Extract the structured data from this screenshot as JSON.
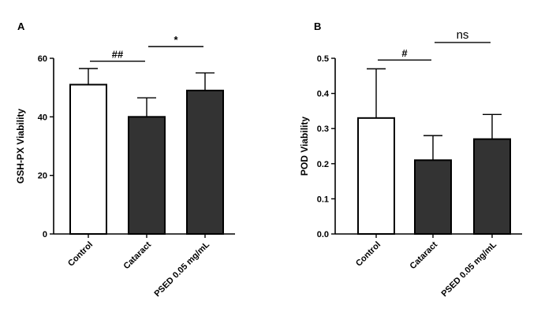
{
  "chart_data": [
    {
      "panel": "A",
      "type": "bar",
      "ylabel": "GSH-PX Viability",
      "xlabel": "",
      "categories": [
        "Control",
        "Cataract",
        "PSED 0.05 mg/mL"
      ],
      "values": [
        51,
        40,
        49
      ],
      "errors": [
        5.5,
        6.5,
        6
      ],
      "bar_colors": [
        "#ffffff",
        "#333333",
        "#333333"
      ],
      "ylim": [
        0,
        60
      ],
      "yticks": [
        0,
        20,
        40,
        60
      ],
      "ytick_labels": [
        "0",
        "20",
        "40",
        "60"
      ],
      "significance": [
        {
          "from": 0,
          "to": 1,
          "label": "##",
          "height": 59
        },
        {
          "from": 1,
          "to": 2,
          "label": "*",
          "height": 64
        }
      ]
    },
    {
      "panel": "B",
      "type": "bar",
      "ylabel": "POD Viability",
      "xlabel": "",
      "categories": [
        "Control",
        "Cataract",
        "PSED 0.05 mg/mL"
      ],
      "values": [
        0.33,
        0.21,
        0.27
      ],
      "errors": [
        0.14,
        0.07,
        0.07
      ],
      "bar_colors": [
        "#ffffff",
        "#333333",
        "#333333"
      ],
      "ylim": [
        0,
        0.5
      ],
      "yticks": [
        0,
        0.1,
        0.2,
        0.3,
        0.4,
        0.5
      ],
      "ytick_labels": [
        "0.0",
        "0.1",
        "0.2",
        "0.3",
        "0.4",
        "0.5"
      ],
      "significance": [
        {
          "from": 0,
          "to": 1,
          "label": "#",
          "height": 0.495
        },
        {
          "from": 1,
          "to": 2,
          "label": "ns",
          "height": 0.545
        }
      ]
    }
  ]
}
